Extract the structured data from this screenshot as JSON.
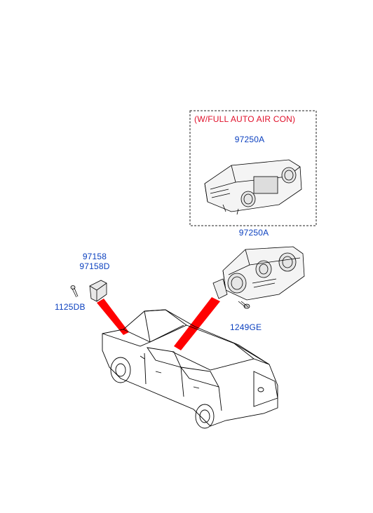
{
  "option_box": {
    "heading": "(W/FULL AUTO AIR CON)",
    "part_number": "97250A"
  },
  "parts": {
    "heater_control_main": "97250A",
    "sensor_line1": "97158",
    "sensor_line2": "97158D",
    "sensor_screw": "1125DB",
    "control_screw": "1249GE"
  },
  "colors": {
    "label_blue": "#0a3fbf",
    "heading_red": "#e0102a",
    "pointer_red": "#ff0000",
    "line_art": "#000000",
    "dashed_border": "#222222"
  }
}
